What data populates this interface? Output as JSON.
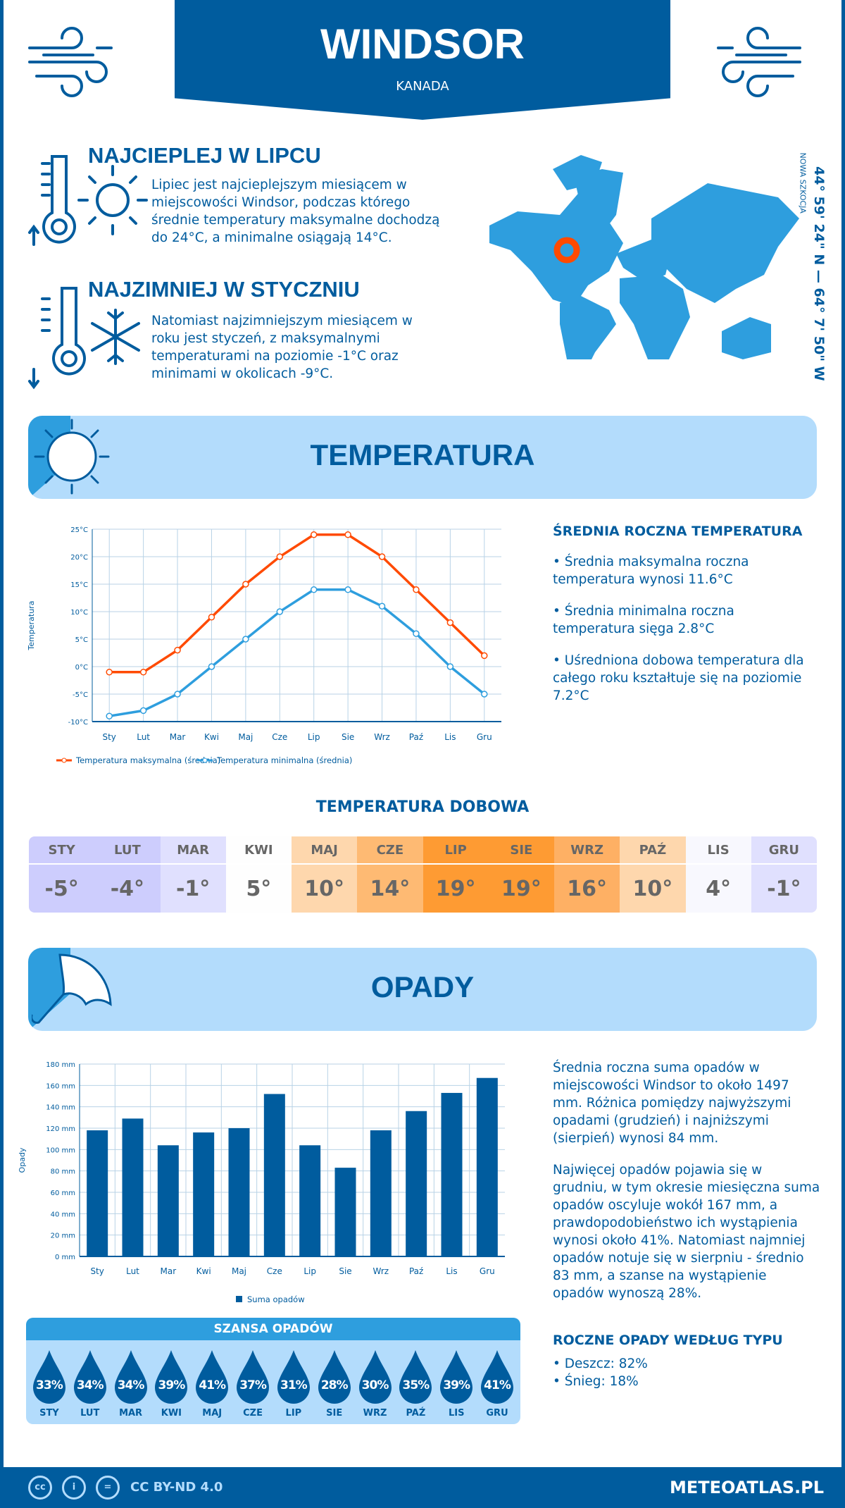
{
  "header": {
    "city": "WINDSOR",
    "country": "KANADA"
  },
  "hot": {
    "title": "NAJCIEPLEJ W LIPCU",
    "text": "Lipiec jest najcieplejszym miesiącem w miejscowości Windsor, podczas którego średnie temperatury maksymalne dochodzą do 24°C, a minimalne osiągają 14°C."
  },
  "cold": {
    "title": "NAJZIMNIEJ W STYCZNIU",
    "text": "Natomiast najzimniejszym miesiącem w roku jest styczeń, z maksymalnymi temperaturami na poziomie -1°C oraz minimami w okolicach -9°C."
  },
  "map": {
    "coords": "44° 59' 24\" N — 64° 7' 50\" W",
    "region": "NOWA SZKOCJA",
    "marker_color": "#ff4a00",
    "land_color": "#2e9ede"
  },
  "temp_section": {
    "title": "TEMPERATURA"
  },
  "temp_summary": {
    "title": "ŚREDNIA ROCZNA TEMPERATURA",
    "items": [
      "• Średnia maksymalna roczna temperatura wynosi 11.6°C",
      "• Średnia minimalna roczna temperatura sięga 2.8°C",
      "• Uśredniona dobowa temperatura dla całego roku kształtuje się na poziomie 7.2°C"
    ]
  },
  "daily": {
    "title": "TEMPERATURA DOBOWA",
    "months": [
      "STY",
      "LUT",
      "MAR",
      "KWI",
      "MAJ",
      "CZE",
      "LIP",
      "SIE",
      "WRZ",
      "PAŹ",
      "LIS",
      "GRU"
    ],
    "values": [
      "-5°",
      "-4°",
      "-1°",
      "5°",
      "10°",
      "14°",
      "19°",
      "19°",
      "16°",
      "10°",
      "4°",
      "-1°"
    ],
    "colors": [
      "#cdcdfd",
      "#cdcdfd",
      "#e0e0fe",
      "#fefefe",
      "#fed7ad",
      "#feba73",
      "#fe9b33",
      "#fe9b33",
      "#feb064",
      "#fed7ad",
      "#f8f8fe",
      "#e0e0fe"
    ]
  },
  "precip_section": {
    "title": "OPADY"
  },
  "precip_text": {
    "p1": "Średnia roczna suma opadów w miejscowości Windsor to około 1497 mm. Różnica pomiędzy najwyższymi opadami (grudzień) i najniższymi (sierpień) wynosi 84 mm.",
    "p2": "Najwięcej opadów pojawia się w grudniu, w tym okresie miesięczna suma opadów oscyluje wokół 167 mm, a prawdopodobieństwo ich wystąpienia wynosi około 41%. Natomiast najmniej opadów notuje się w sierpniu - średnio 83 mm, a szanse na wystąpienie opadów wynoszą 28%."
  },
  "precip_type": {
    "title": "ROCZNE OPADY WEDŁUG TYPU",
    "items": [
      "• Deszcz: 82%",
      "• Śnieg: 18%"
    ]
  },
  "chance": {
    "title": "SZANSA OPADÓW",
    "months": [
      "STY",
      "LUT",
      "MAR",
      "KWI",
      "MAJ",
      "CZE",
      "LIP",
      "SIE",
      "WRZ",
      "PAŹ",
      "LIS",
      "GRU"
    ],
    "values": [
      "33%",
      "34%",
      "34%",
      "39%",
      "41%",
      "37%",
      "31%",
      "28%",
      "30%",
      "35%",
      "39%",
      "41%"
    ]
  },
  "footer": {
    "license": "CC BY-ND 4.0",
    "site": "METEOATLAS.PL"
  },
  "chart_data": [
    {
      "type": "line",
      "ylabel": "Temperatura",
      "ylim": [
        -10,
        25
      ],
      "yticks": [
        "25°C",
        "20°C",
        "15°C",
        "10°C",
        "5°C",
        "0°C",
        "-5°C",
        "-10°C"
      ],
      "grid": true,
      "legend": "bottom",
      "categories": [
        "Sty",
        "Lut",
        "Mar",
        "Kwi",
        "Maj",
        "Cze",
        "Lip",
        "Sie",
        "Wrz",
        "Paź",
        "Lis",
        "Gru"
      ],
      "series": [
        {
          "name": "Temperatura maksymalna (średnia)",
          "color": "#ff4a00",
          "values": [
            -1,
            -1,
            3,
            9,
            15,
            20,
            24,
            24,
            20,
            14,
            8,
            2
          ]
        },
        {
          "name": "Temperatura minimalna (średnia)",
          "color": "#2e9ede",
          "values": [
            -9,
            -8,
            -5,
            0,
            5,
            10,
            14,
            14,
            11,
            6,
            0,
            -5
          ]
        }
      ]
    },
    {
      "type": "bar",
      "ylabel": "Opady",
      "ylim": [
        0,
        180
      ],
      "yticks": [
        "180 mm",
        "160 mm",
        "140 mm",
        "120 mm",
        "100 mm",
        "80 mm",
        "60 mm",
        "40 mm",
        "20 mm",
        "0 mm"
      ],
      "grid": true,
      "legend": "bottom",
      "categories": [
        "Sty",
        "Lut",
        "Mar",
        "Kwi",
        "Maj",
        "Cze",
        "Lip",
        "Sie",
        "Wrz",
        "Paź",
        "Lis",
        "Gru"
      ],
      "series": [
        {
          "name": "Suma opadów",
          "color": "#005c9e",
          "values": [
            118,
            129,
            104,
            116,
            120,
            152,
            104,
            83,
            118,
            136,
            153,
            167
          ]
        }
      ]
    }
  ]
}
